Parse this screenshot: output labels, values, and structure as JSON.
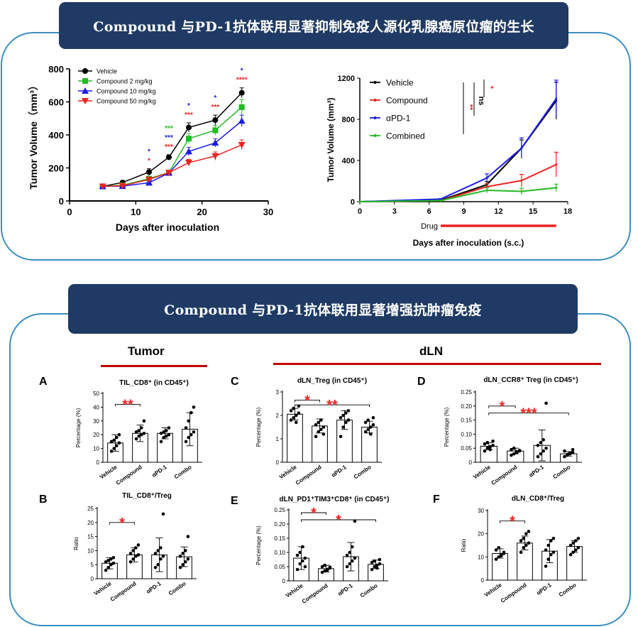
{
  "banners": {
    "top": "Compound 与PD-1抗体联用显著抑制免疫人源化乳腺癌原位瘤的生长",
    "bottom": "Compound 与PD-1抗体联用显著增强抗肿瘤免疫"
  },
  "section_labels": {
    "tumor": "Tumor",
    "dln": "dLN"
  },
  "colors": {
    "panel_border": "#3a8fc0",
    "banner_bg": "#1f3a64",
    "red_line": "#c40000",
    "black": "#000000",
    "green": "#22bb22",
    "blue": "#1a1aee",
    "red": "#ee2222"
  },
  "chart_data": [
    {
      "id": "growth1",
      "type": "line",
      "xlabel": "Days after inoculation",
      "ylabel": "Tumor Volume（mm³）",
      "xlim": [
        0,
        30
      ],
      "ylim": [
        0,
        800
      ],
      "xticks": [
        0,
        10,
        20,
        30
      ],
      "yticks": [
        0,
        200,
        400,
        600,
        800
      ],
      "x": [
        5,
        8,
        12,
        15,
        18,
        22,
        26
      ],
      "series": [
        {
          "name": "Vehicle",
          "marker": "circle",
          "color": "#000000",
          "values": [
            88,
            112,
            175,
            265,
            445,
            490,
            655
          ],
          "err": [
            8,
            10,
            20,
            15,
            28,
            30,
            30
          ]
        },
        {
          "name": "Compound    2 mg/kg",
          "marker": "square",
          "color": "#22bb22",
          "values": [
            88,
            95,
            135,
            172,
            378,
            428,
            568
          ],
          "err": [
            8,
            8,
            15,
            15,
            30,
            30,
            45
          ]
        },
        {
          "name": "Compound    10 mg/kg",
          "marker": "triangle-up",
          "color": "#1a1aee",
          "values": [
            88,
            90,
            110,
            170,
            300,
            352,
            485
          ],
          "err": [
            8,
            8,
            10,
            15,
            25,
            25,
            35
          ]
        },
        {
          "name": "Compound    50 mg/kg",
          "marker": "triangle-down",
          "color": "#ee2222",
          "values": [
            88,
            92,
            130,
            172,
            232,
            272,
            340
          ],
          "err": [
            8,
            8,
            10,
            15,
            20,
            25,
            30
          ]
        }
      ],
      "annotations": [
        {
          "x": 12,
          "lines": [
            {
              "t": "*",
              "c": "blue"
            },
            {
              "t": "*",
              "c": "red"
            }
          ]
        },
        {
          "x": 15,
          "lines": [
            {
              "t": "***",
              "c": "green"
            },
            {
              "t": "***",
              "c": "blue"
            },
            {
              "t": "***",
              "c": "red"
            }
          ]
        },
        {
          "x": 18,
          "lines": [
            {
              "t": "*",
              "c": "blue"
            },
            {
              "t": "***",
              "c": "red"
            }
          ]
        },
        {
          "x": 22,
          "lines": [
            {
              "t": "*",
              "c": "blue"
            },
            {
              "t": "***",
              "c": "red"
            }
          ]
        },
        {
          "x": 26,
          "lines": [
            {
              "t": "*",
              "c": "blue"
            },
            {
              "t": "****",
              "c": "red"
            }
          ]
        }
      ]
    },
    {
      "id": "growth2",
      "type": "line",
      "xlabel": "Days after inoculation (s.c.)",
      "ylabel": "Tumor Volume (mm³)",
      "xlim": [
        0,
        18
      ],
      "ylim": [
        0,
        1200
      ],
      "xticks": [
        0,
        3,
        6,
        9,
        12,
        15,
        18
      ],
      "yticks": [
        0,
        400,
        800,
        1200
      ],
      "x": [
        0,
        7,
        11,
        14,
        17
      ],
      "series": [
        {
          "name": "Vehicle",
          "color": "#000000",
          "values": [
            0,
            15,
            165,
            520,
            980
          ],
          "err": [
            0,
            5,
            30,
            80,
            180
          ]
        },
        {
          "name": "Compound",
          "color": "#ee2222",
          "values": [
            0,
            10,
            145,
            205,
            360
          ],
          "err": [
            0,
            5,
            30,
            60,
            120
          ]
        },
        {
          "name": "αPD-1",
          "color": "#1a1aee",
          "values": [
            0,
            25,
            230,
            520,
            1000
          ],
          "err": [
            0,
            5,
            40,
            100,
            180
          ]
        },
        {
          "name": "Combined",
          "color": "#22bb22",
          "values": [
            0,
            10,
            110,
            100,
            135
          ],
          "err": [
            0,
            5,
            25,
            30,
            35
          ]
        }
      ],
      "drug_label": "Drug",
      "drug_range": [
        7,
        17
      ],
      "sig": [
        {
          "t": "**",
          "c": "red"
        },
        {
          "t": "ns",
          "c": "black"
        },
        {
          "t": "*",
          "c": "red"
        }
      ]
    },
    {
      "id": "A",
      "panel": "A",
      "type": "bar",
      "title": "TIL_CD8⁺ (in CD45⁺)",
      "ylabel": "Percentage (%)",
      "ylim": [
        0,
        50
      ],
      "yticks": [
        0,
        10,
        20,
        30,
        40,
        50
      ],
      "categories": [
        "Vehicle",
        "Compound",
        "αPD-1",
        "Combo"
      ],
      "values": [
        14,
        21,
        21,
        24
      ],
      "err": [
        6,
        6,
        4,
        12
      ],
      "points": [
        [
          8,
          10,
          12,
          14,
          15,
          16,
          18,
          20
        ],
        [
          17,
          19,
          20,
          21,
          22,
          23,
          25,
          30
        ],
        [
          15,
          18,
          19,
          20,
          21,
          22,
          23,
          25
        ],
        [
          15,
          18,
          20,
          22,
          25,
          30,
          36,
          40
        ]
      ],
      "sig": [
        {
          "t": "**",
          "from": 0,
          "to": 1,
          "y": 42
        }
      ]
    },
    {
      "id": "B",
      "panel": "B",
      "type": "bar",
      "title": "TIL_CD8⁺/Treg",
      "ylabel": "Ratio",
      "ylim": [
        0,
        25
      ],
      "yticks": [
        0,
        5,
        10,
        15,
        20,
        25
      ],
      "categories": [
        "Vehicle",
        "Compound",
        "αPD-1",
        "Combo"
      ],
      "values": [
        5.5,
        8.5,
        8.5,
        7.8
      ],
      "err": [
        2,
        2.5,
        6,
        3.5
      ],
      "points": [
        [
          3,
          4,
          5,
          5.5,
          6,
          6.5,
          7,
          7.5
        ],
        [
          6,
          7,
          8,
          8.5,
          9,
          10,
          11,
          12
        ],
        [
          4,
          5,
          7,
          8,
          9,
          10,
          11,
          23
        ],
        [
          4,
          5,
          6,
          7,
          8,
          9,
          10,
          15
        ]
      ],
      "sig": [
        {
          "t": "*",
          "from": 0,
          "to": 1,
          "y": 20
        }
      ]
    },
    {
      "id": "C",
      "panel": "C",
      "type": "bar",
      "title": "dLN_Treg (in CD45⁺)",
      "ylabel": "Percentage (%)",
      "ylim": [
        0,
        3
      ],
      "yticks": [
        0,
        1,
        2,
        3
      ],
      "categories": [
        "Vehicle",
        "Compound",
        "αPD-1",
        "Combo"
      ],
      "values": [
        2.05,
        1.55,
        1.8,
        1.5
      ],
      "err": [
        0.25,
        0.3,
        0.4,
        0.25
      ],
      "points": [
        [
          1.8,
          1.9,
          2.0,
          2.1,
          2.2,
          2.3,
          1.7,
          2.4
        ],
        [
          1.1,
          1.3,
          1.4,
          1.5,
          1.6,
          1.7,
          1.8,
          1.2
        ],
        [
          1.1,
          1.5,
          1.7,
          1.8,
          1.9,
          2.0,
          2.1,
          2.2
        ],
        [
          1.3,
          1.4,
          1.5,
          1.6,
          1.7,
          1.8,
          1.2,
          1.9
        ]
      ],
      "sig": [
        {
          "t": "*",
          "from": 0,
          "to": 1,
          "y": 2.65
        },
        {
          "t": "**",
          "from": 0,
          "to": 3,
          "y": 2.45
        }
      ]
    },
    {
      "id": "D",
      "panel": "D",
      "type": "bar",
      "title": "dLN_CCR8⁺ Treg (in CD45⁺)",
      "ylabel": "Percentage (%)",
      "ylim": [
        0,
        0.25
      ],
      "yticks": [
        0,
        0.05,
        0.1,
        0.15,
        0.2,
        0.25
      ],
      "categories": [
        "Vehicle",
        "Compound",
        "αPD-1",
        "Combo"
      ],
      "values": [
        0.057,
        0.04,
        0.06,
        0.03
      ],
      "err": [
        0.012,
        0.01,
        0.055,
        0.008
      ],
      "points": [
        [
          0.04,
          0.05,
          0.055,
          0.06,
          0.065,
          0.07,
          0.045,
          0.075
        ],
        [
          0.025,
          0.03,
          0.035,
          0.04,
          0.045,
          0.05,
          0.038,
          0.042
        ],
        [
          0.02,
          0.03,
          0.04,
          0.05,
          0.06,
          0.07,
          0.08,
          0.21
        ],
        [
          0.02,
          0.025,
          0.03,
          0.035,
          0.04,
          0.028,
          0.032,
          0.045
        ]
      ],
      "sig": [
        {
          "t": "*",
          "from": 0,
          "to": 1,
          "y": 0.2
        },
        {
          "t": "***",
          "from": 0,
          "to": 3,
          "y": 0.175
        }
      ]
    },
    {
      "id": "E",
      "panel": "E",
      "type": "bar",
      "title": "dLN_PD1⁺TIM3⁺CD8⁺ (in CD45⁺)",
      "ylabel": "Percentage (%)",
      "ylim": [
        0,
        0.25
      ],
      "yticks": [
        0,
        0.05,
        0.1,
        0.15,
        0.2,
        0.25
      ],
      "categories": [
        "Vehicle",
        "Compound",
        "αPD-1",
        "Combo"
      ],
      "values": [
        0.08,
        0.043,
        0.085,
        0.058
      ],
      "err": [
        0.04,
        0.012,
        0.05,
        0.015
      ],
      "points": [
        [
          0.04,
          0.06,
          0.07,
          0.08,
          0.09,
          0.1,
          0.12,
          0.05
        ],
        [
          0.03,
          0.035,
          0.04,
          0.045,
          0.05,
          0.055,
          0.038,
          0.048
        ],
        [
          0.05,
          0.06,
          0.07,
          0.08,
          0.09,
          0.1,
          0.12,
          0.21
        ],
        [
          0.04,
          0.05,
          0.055,
          0.06,
          0.065,
          0.07,
          0.045,
          0.075
        ]
      ],
      "sig": [
        {
          "t": "*",
          "from": 0,
          "to": 1,
          "y": 0.24
        },
        {
          "t": "*",
          "from": 0,
          "to": 3,
          "y": 0.215
        }
      ]
    },
    {
      "id": "F",
      "panel": "F",
      "type": "bar",
      "title": "dLN_CD8⁺/Treg",
      "ylabel": "Ratio",
      "ylim": [
        0,
        30
      ],
      "yticks": [
        0,
        10,
        20,
        30
      ],
      "categories": [
        "Vehicle",
        "Compound",
        "αPD-1",
        "Combo"
      ],
      "values": [
        11.5,
        16,
        12.5,
        14.5
      ],
      "err": [
        2,
        3,
        5,
        2.5
      ],
      "points": [
        [
          9,
          10,
          11,
          12,
          13,
          14,
          10.5,
          11.5
        ],
        [
          12,
          14,
          15,
          16,
          17,
          18,
          20,
          21
        ],
        [
          6,
          9,
          11,
          12,
          13,
          15,
          17,
          18
        ],
        [
          11,
          12,
          13,
          14,
          15,
          16,
          17,
          18
        ]
      ],
      "sig": [
        {
          "t": "*",
          "from": 0,
          "to": 1,
          "y": 25.5
        }
      ]
    }
  ]
}
